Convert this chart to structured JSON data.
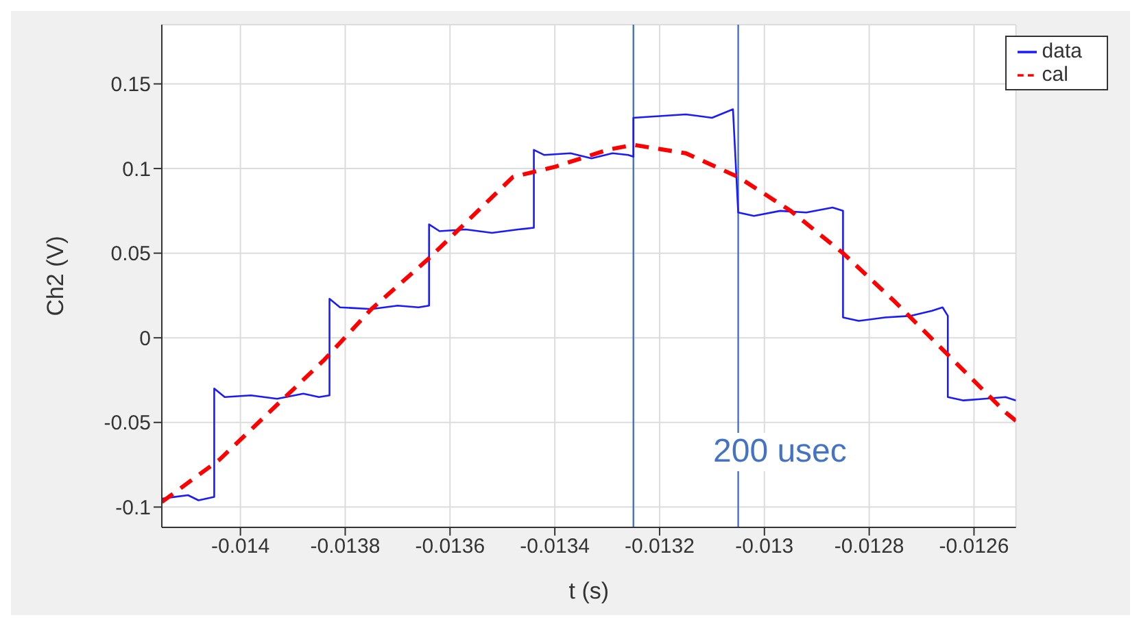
{
  "chart_data": {
    "type": "line",
    "xlabel": "t (s)",
    "ylabel": "Ch2 (V)",
    "xlim": [
      -0.01415,
      -0.01252
    ],
    "xticks": [
      -0.014,
      -0.0138,
      -0.0136,
      -0.0134,
      -0.0132,
      -0.013,
      -0.0128,
      -0.0126
    ],
    "ylim": [
      -0.112,
      0.185
    ],
    "yticks": [
      -0.1,
      -0.05,
      0,
      0.05,
      0.1,
      0.15
    ],
    "grid": true,
    "legend": "top right",
    "series": [
      {
        "name": "data",
        "color": "#1a1aff",
        "line_style": "solid",
        "x": [
          -0.01415,
          -0.0141,
          -0.01408,
          -0.01405,
          -0.01405,
          -0.01403,
          -0.01398,
          -0.01393,
          -0.01388,
          -0.01385,
          -0.01383,
          -0.01383,
          -0.01381,
          -0.01375,
          -0.0137,
          -0.01366,
          -0.01364,
          -0.01364,
          -0.01362,
          -0.01357,
          -0.01352,
          -0.01347,
          -0.01344,
          -0.01344,
          -0.01342,
          -0.01337,
          -0.01333,
          -0.01329,
          -0.01326,
          -0.01325,
          -0.01325,
          -0.0132,
          -0.01315,
          -0.0131,
          -0.01306,
          -0.01305,
          -0.01302,
          -0.01297,
          -0.01292,
          -0.01287,
          -0.01285,
          -0.01285,
          -0.01282,
          -0.01277,
          -0.01272,
          -0.01268,
          -0.01266,
          -0.01265,
          -0.01265,
          -0.01262,
          -0.01258,
          -0.01254,
          -0.01252
        ],
        "values": [
          -0.095,
          -0.093,
          -0.096,
          -0.094,
          -0.03,
          -0.035,
          -0.034,
          -0.036,
          -0.033,
          -0.035,
          -0.034,
          0.023,
          0.018,
          0.017,
          0.019,
          0.018,
          0.019,
          0.067,
          0.063,
          0.064,
          0.062,
          0.064,
          0.065,
          0.111,
          0.108,
          0.109,
          0.106,
          0.109,
          0.108,
          0.107,
          0.13,
          0.131,
          0.132,
          0.13,
          0.135,
          0.074,
          0.072,
          0.075,
          0.074,
          0.077,
          0.075,
          0.012,
          0.01,
          0.012,
          0.013,
          0.016,
          0.018,
          0.013,
          -0.035,
          -0.037,
          -0.036,
          -0.035,
          -0.037
        ]
      },
      {
        "name": "cal",
        "color": "#ff0000",
        "line_style": "dashed",
        "x": [
          -0.01415,
          -0.01404,
          -0.01384,
          -0.01375,
          -0.01364,
          -0.01348,
          -0.0134,
          -0.0133,
          -0.01325,
          -0.01315,
          -0.01305,
          -0.01295,
          -0.01285,
          -0.01275,
          -0.01265,
          -0.01254,
          -0.01252
        ],
        "values": [
          -0.097,
          -0.072,
          -0.013,
          0.017,
          0.047,
          0.095,
          0.101,
          0.111,
          0.114,
          0.109,
          0.095,
          0.075,
          0.05,
          0.021,
          -0.01,
          -0.044,
          -0.049
        ]
      }
    ],
    "ref_lines": [
      {
        "axis": "x",
        "value": -0.01325,
        "color": "#4472c4"
      },
      {
        "axis": "x",
        "value": -0.01305,
        "color": "#4472c4"
      }
    ],
    "annotations": [
      "200 usec"
    ]
  }
}
